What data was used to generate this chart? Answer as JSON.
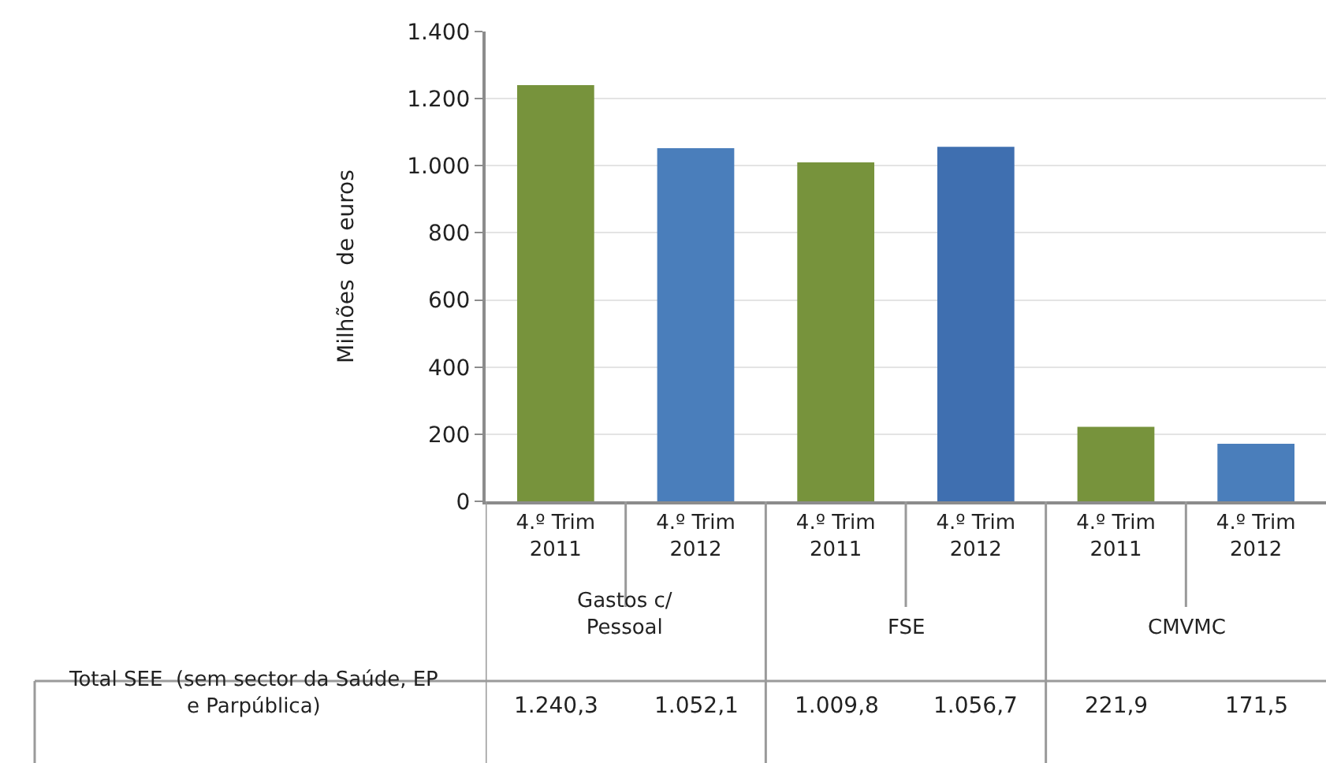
{
  "chart_data": {
    "type": "bar",
    "ylabel": "Milhões  de euros",
    "categories": [
      "4.º Trim 2011",
      "4.º Trim 2012",
      "4.º Trim 2011",
      "4.º Trim 2012",
      "4.º Trim 2011",
      "4.º Trim 2012"
    ],
    "series": [
      {
        "name": "Total SEE  (sem sector da Saúde, EP e Parpública)",
        "colors": [
          "#77933c",
          "#4a7ebb",
          "#77933c",
          "#3f6fb0",
          "#77933c",
          "#4a7ebb"
        ],
        "values": [
          1240.3,
          1052.1,
          1009.8,
          1056.7,
          221.9,
          171.5
        ],
        "value_labels": [
          "1.240,3",
          "1.052,1",
          "1.009,8",
          "1.056,7",
          "221,9",
          "171,5"
        ]
      }
    ],
    "annotations": [
      "Gastos c/ Pessoal",
      "FSE",
      "CMVMC"
    ],
    "ylim": [
      0,
      1400
    ],
    "yticks": [
      0,
      {
        "value": 200,
        "label": "200"
      },
      {
        "value": 400,
        "label": "400"
      },
      {
        "value": 600,
        "label": "600"
      },
      {
        "value": 800,
        "label": "800"
      },
      {
        "value": 1000,
        "label": "1.000"
      },
      {
        "value": 1200,
        "label": "1.200"
      },
      {
        "value": 1400,
        "label": "1.400"
      }
    ],
    "grid": "y"
  }
}
